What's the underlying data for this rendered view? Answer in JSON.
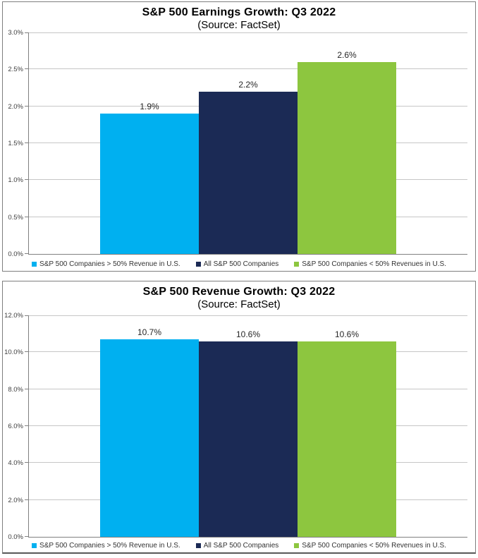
{
  "chart_data": [
    {
      "type": "bar",
      "title": "S&P 500 Earnings Growth: Q3 2022",
      "subtitle": "(Source: FactSet)",
      "categories": [
        "S&P 500 Companies > 50% Revenue in U.S.",
        "All S&P 500 Companies",
        "S&P 500 Companies < 50% Revenues in U.S."
      ],
      "values": [
        1.9,
        2.2,
        2.6
      ],
      "value_labels": [
        "1.9%",
        "2.2%",
        "2.6%"
      ],
      "colors": [
        "#00B0F0",
        "#1B2A55",
        "#8DC63F"
      ],
      "ylim": [
        0,
        3.0
      ],
      "yticks": [
        0.0,
        0.5,
        1.0,
        1.5,
        2.0,
        2.5,
        3.0
      ],
      "ytick_labels": [
        "0.0%",
        "0.5%",
        "1.0%",
        "1.5%",
        "2.0%",
        "2.5%",
        "3.0%"
      ],
      "xlabel": "",
      "ylabel": "",
      "grid": true,
      "legend_position": "bottom"
    },
    {
      "type": "bar",
      "title": "S&P 500 Revenue Growth: Q3 2022",
      "subtitle": "(Source: FactSet)",
      "categories": [
        "S&P 500 Companies > 50% Revenue in U.S.",
        "All S&P 500 Companies",
        "S&P 500 Companies < 50% Revenues in U.S."
      ],
      "values": [
        10.7,
        10.6,
        10.6
      ],
      "value_labels": [
        "10.7%",
        "10.6%",
        "10.6%"
      ],
      "colors": [
        "#00B0F0",
        "#1B2A55",
        "#8DC63F"
      ],
      "ylim": [
        0,
        12.0
      ],
      "yticks": [
        0.0,
        2.0,
        4.0,
        6.0,
        8.0,
        10.0,
        12.0
      ],
      "ytick_labels": [
        "0.0%",
        "2.0%",
        "4.0%",
        "6.0%",
        "8.0%",
        "10.0%",
        "12.0%"
      ],
      "xlabel": "",
      "ylabel": "",
      "grid": true,
      "legend_position": "bottom"
    }
  ],
  "style": {
    "gridline_color": "#c6c6c6",
    "axis_color": "#808080",
    "border_color": "#7f7f7f"
  }
}
